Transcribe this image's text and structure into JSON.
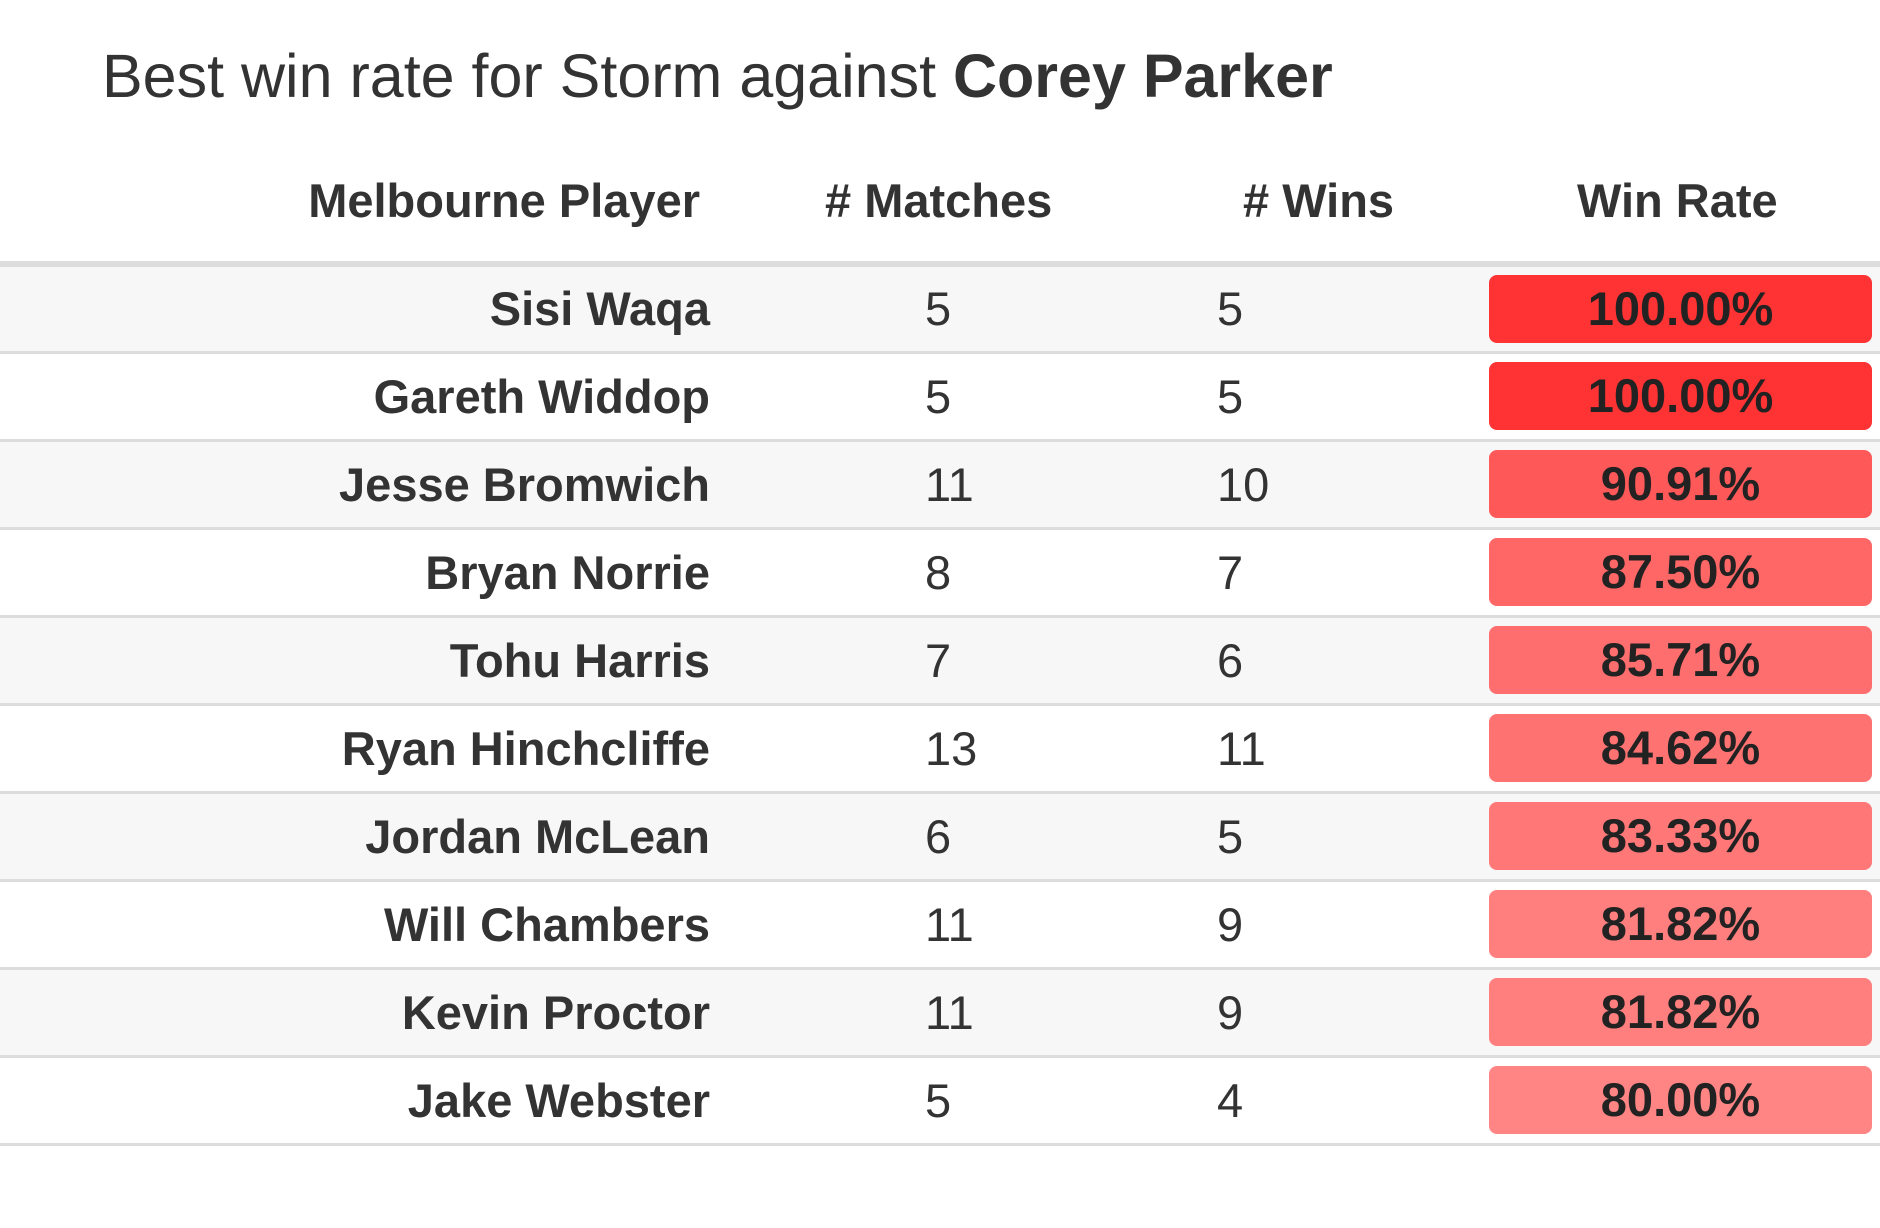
{
  "title": {
    "prefix": "Best win rate for Storm against ",
    "opponent": "Corey Parker"
  },
  "table": {
    "headers": {
      "player": "Melbourne Player",
      "matches": "# Matches",
      "wins": "# Wins",
      "win_rate": "Win Rate"
    },
    "rows": [
      {
        "player": "Sisi Waqa",
        "matches": "5",
        "wins": "5",
        "win_rate": "100.00%",
        "rate_value": 100.0
      },
      {
        "player": "Gareth Widdop",
        "matches": "5",
        "wins": "5",
        "win_rate": "100.00%",
        "rate_value": 100.0
      },
      {
        "player": "Jesse Bromwich",
        "matches": "11",
        "wins": "10",
        "win_rate": "90.91%",
        "rate_value": 90.91
      },
      {
        "player": "Bryan Norrie",
        "matches": "8",
        "wins": "7",
        "win_rate": "87.50%",
        "rate_value": 87.5
      },
      {
        "player": "Tohu Harris",
        "matches": "7",
        "wins": "6",
        "win_rate": "85.71%",
        "rate_value": 85.71
      },
      {
        "player": "Ryan Hinchcliffe",
        "matches": "13",
        "wins": "11",
        "win_rate": "84.62%",
        "rate_value": 84.62
      },
      {
        "player": "Jordan McLean",
        "matches": "6",
        "wins": "5",
        "win_rate": "83.33%",
        "rate_value": 83.33
      },
      {
        "player": "Will Chambers",
        "matches": "11",
        "wins": "9",
        "win_rate": "81.82%",
        "rate_value": 81.82
      },
      {
        "player": "Kevin Proctor",
        "matches": "11",
        "wins": "9",
        "win_rate": "81.82%",
        "rate_value": 81.82
      },
      {
        "player": "Jake Webster",
        "matches": "5",
        "wins": "4",
        "win_rate": "80.00%",
        "rate_value": 80.0
      }
    ]
  },
  "colors": {
    "rate_high": "#ff3333",
    "rate_low": "#ff8585",
    "text": "#333333",
    "row_alt": "#f7f7f7",
    "border": "#dddddd"
  }
}
